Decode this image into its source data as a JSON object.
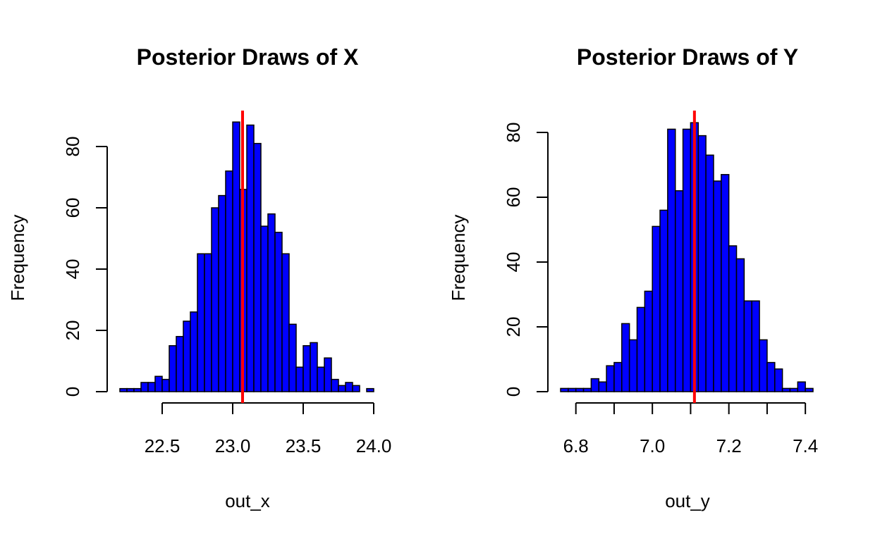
{
  "colors": {
    "bar_fill": "#0000ff",
    "bar_stroke": "#000000",
    "ref_line": "#ff0000"
  },
  "chart_data": [
    {
      "type": "bar",
      "title": "Posterior Draws of X",
      "xlabel": "out_x",
      "ylabel": "Frequency",
      "xlim": [
        22.2,
        24.0
      ],
      "ylim": [
        0,
        88
      ],
      "bin_width": 0.05,
      "bin_start": 22.2,
      "values": [
        1,
        1,
        1,
        3,
        3,
        5,
        4,
        15,
        18,
        23,
        26,
        45,
        45,
        60,
        64,
        72,
        88,
        66,
        87,
        81,
        54,
        58,
        52,
        45,
        22,
        8,
        15,
        16,
        8,
        11,
        4,
        2,
        3,
        2,
        0,
        1
      ],
      "x_ticks": [
        22.5,
        23.0,
        23.5,
        24.0
      ],
      "x_tick_labels": [
        "22.5",
        "23.0",
        "23.5",
        "24.0"
      ],
      "y_ticks": [
        0,
        20,
        40,
        60,
        80
      ],
      "y_tick_labels": [
        "0",
        "20",
        "40",
        "60",
        "80"
      ],
      "reference_line_x": 23.07
    },
    {
      "type": "bar",
      "title": "Posterior Draws of Y",
      "xlabel": "out_y",
      "ylabel": "Frequency",
      "xlim": [
        6.76,
        7.42
      ],
      "ylim": [
        0,
        83
      ],
      "bin_width": 0.02,
      "bin_start": 6.76,
      "values": [
        1,
        1,
        1,
        1,
        4,
        3,
        8,
        9,
        21,
        16,
        26,
        31,
        51,
        56,
        81,
        62,
        81,
        83,
        79,
        73,
        65,
        67,
        45,
        41,
        28,
        28,
        16,
        9,
        7,
        1,
        1,
        3,
        1
      ],
      "x_ticks": [
        6.8,
        6.9,
        7.0,
        7.1,
        7.2,
        7.3,
        7.4
      ],
      "x_tick_labels": [
        "6.8",
        "",
        "7.0",
        "",
        "7.2",
        "",
        "7.4"
      ],
      "y_ticks": [
        0,
        20,
        40,
        60,
        80
      ],
      "y_tick_labels": [
        "0",
        "20",
        "40",
        "60",
        "80"
      ],
      "reference_line_x": 7.11
    }
  ]
}
